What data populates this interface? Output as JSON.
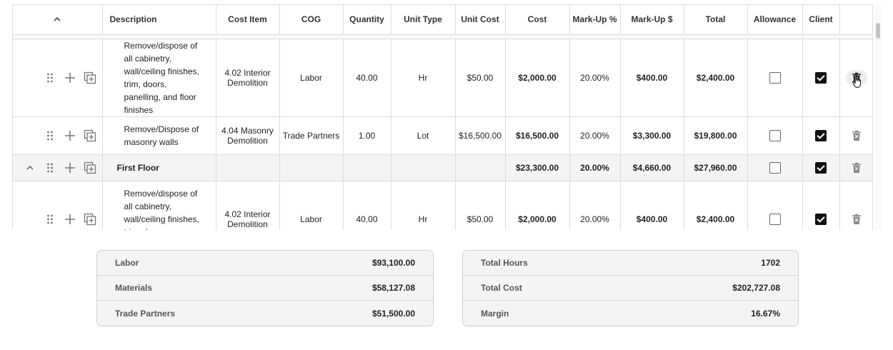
{
  "table": {
    "headers": [
      "Description",
      "Cost Item",
      "COG",
      "Quantity",
      "Unit Type",
      "Unit Cost",
      "Cost",
      "Mark-Up %",
      "Mark-Up $",
      "Total",
      "Allowance",
      "Client"
    ],
    "rows": [
      {
        "type": "item",
        "description": "Remove/dispose of all cabinetry, wall/ceiling finishes, trim, doors, panelling, and floor finishes",
        "cost_item": "4.02 Interior Demolition",
        "cog": "Labor",
        "quantity": "40.00",
        "unit_type": "Hr",
        "unit_cost": "$50.00",
        "cost": "$2,000.00",
        "markup_pct": "20.00%",
        "markup_amt": "$400.00",
        "total": "$2,400.00",
        "allowance": false,
        "client": true
      },
      {
        "type": "item",
        "description": "Remove/Dispose of masonry walls",
        "cost_item": "4.04 Masonry Demolition",
        "cog": "Trade Partners",
        "quantity": "1.00",
        "unit_type": "Lot",
        "unit_cost": "$16,500.00",
        "cost": "$16,500.00",
        "markup_pct": "20.00%",
        "markup_amt": "$3,300.00",
        "total": "$19,800.00",
        "allowance": false,
        "client": true
      },
      {
        "type": "group",
        "description": "First Floor",
        "cost": "$23,300.00",
        "markup_pct": "20.00%",
        "markup_amt": "$4,660.00",
        "total": "$27,960.00",
        "allowance": false,
        "client": true
      },
      {
        "type": "item",
        "description": "Remove/dispose of all cabinetry, wall/ceiling finishes, trim, doors, panelling",
        "cost_item": "4.02 Interior Demolition",
        "cog": "Labor",
        "quantity": "40.00",
        "unit_type": "Hr",
        "unit_cost": "$50.00",
        "cost": "$2,000.00",
        "markup_pct": "20.00%",
        "markup_amt": "$400.00",
        "total": "$2,400.00",
        "allowance": false,
        "client": true
      }
    ]
  },
  "summary_left": [
    {
      "label": "Labor",
      "value": "$93,100.00"
    },
    {
      "label": "Materials",
      "value": "$58,127.08"
    },
    {
      "label": "Trade Partners",
      "value": "$51,500.00"
    }
  ],
  "summary_right": [
    {
      "label": "Total Hours",
      "value": "1702"
    },
    {
      "label": "Total Cost",
      "value": "$202,727.08"
    },
    {
      "label": "Margin",
      "value": "16.67%"
    }
  ],
  "icons": {
    "collapse_all": "chevron-up-icon",
    "drag": "drag-handle-icon",
    "add": "plus-icon",
    "duplicate": "duplicate-icon",
    "delete": "trash-icon"
  }
}
